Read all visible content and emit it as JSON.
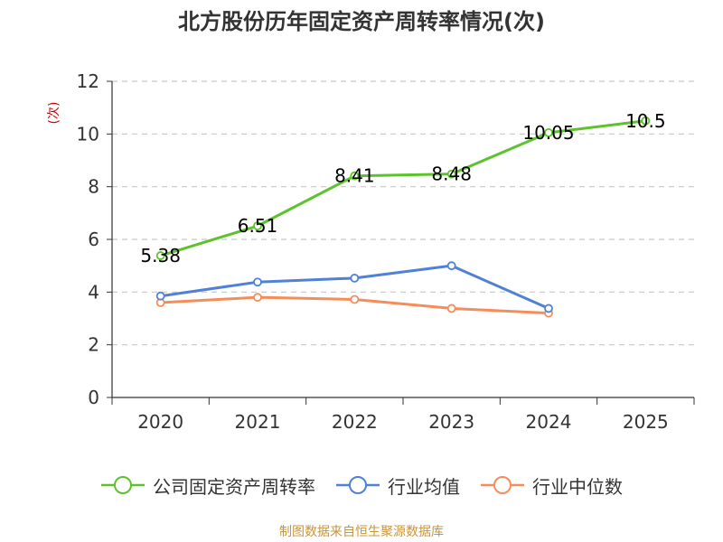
{
  "title": "北方股份历年固定资产周转率情况(次)",
  "source": "制图数据来自恒生聚源数据库",
  "chart_data": {
    "type": "line",
    "title": "北方股份历年固定资产周转率情况(次)",
    "ylabel": "(次)",
    "xlabel": "",
    "categories": [
      "2020",
      "2021",
      "2022",
      "2023",
      "2024",
      "2025"
    ],
    "ylim": [
      0,
      12
    ],
    "yticks": [
      0,
      2,
      4,
      6,
      8,
      10,
      12
    ],
    "grid": true,
    "legend_position": "bottom",
    "series": [
      {
        "name": "公司固定资产周转率",
        "color": "#5cc22d",
        "values": [
          5.38,
          6.51,
          8.41,
          8.48,
          10.05,
          10.5
        ],
        "labels": [
          "5.38",
          "6.51",
          "8.41",
          "8.48",
          "10.05",
          "10.5"
        ]
      },
      {
        "name": "行业均值",
        "color": "#4f81d9",
        "values": [
          3.85,
          4.38,
          4.53,
          5.0,
          3.38,
          null
        ]
      },
      {
        "name": "行业中位数",
        "color": "#f58d5a",
        "values": [
          3.6,
          3.8,
          3.72,
          3.38,
          3.2,
          null
        ]
      }
    ]
  }
}
